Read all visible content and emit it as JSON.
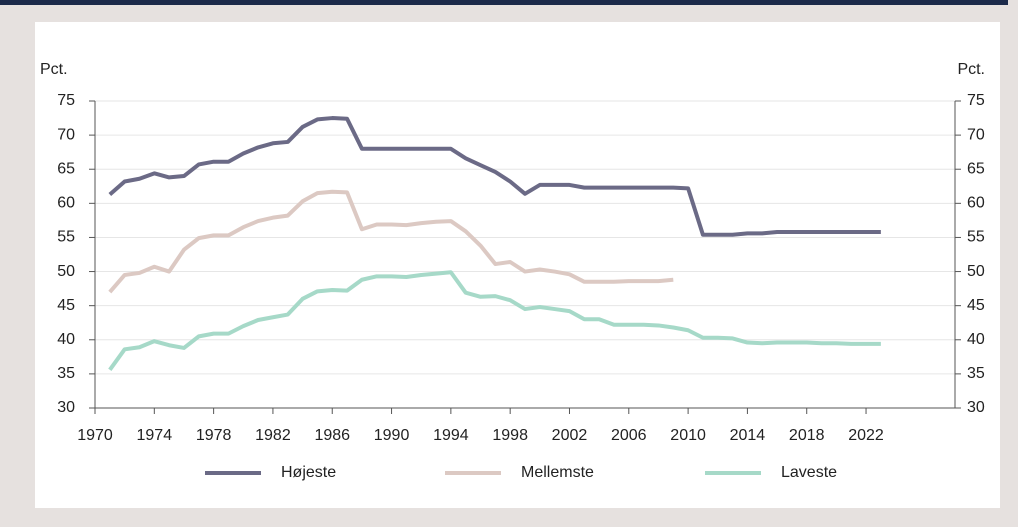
{
  "chart_data": {
    "type": "line",
    "y_label": "Pct.",
    "y2_label": "Pct.",
    "x": [
      1971,
      1972,
      1973,
      1974,
      1975,
      1976,
      1977,
      1978,
      1979,
      1980,
      1981,
      1982,
      1983,
      1984,
      1985,
      1986,
      1987,
      1988,
      1989,
      1990,
      1991,
      1992,
      1993,
      1994,
      1995,
      1996,
      1997,
      1998,
      1999,
      2000,
      2001,
      2002,
      2003,
      2004,
      2005,
      2006,
      2007,
      2008,
      2009,
      2010,
      2011,
      2012,
      2013,
      2014,
      2015,
      2016,
      2017,
      2018,
      2019,
      2020,
      2021,
      2022,
      2023
    ],
    "series": [
      {
        "name": "Højeste",
        "color": "#6b6a86",
        "values": [
          61.3,
          63.2,
          63.6,
          64.4,
          63.8,
          64.0,
          65.7,
          66.1,
          66.1,
          67.3,
          68.2,
          68.8,
          69.0,
          71.2,
          72.3,
          72.5,
          72.4,
          68.0,
          68.0,
          68.0,
          68.0,
          68.0,
          68.0,
          68.0,
          66.6,
          65.6,
          64.6,
          63.2,
          61.4,
          62.7,
          62.7,
          62.7,
          62.3,
          62.3,
          62.3,
          62.3,
          62.3,
          62.3,
          62.3,
          62.2,
          55.4,
          55.4,
          55.4,
          55.6,
          55.6,
          55.8,
          55.8,
          55.8,
          55.8,
          55.8,
          55.8,
          55.8,
          55.8
        ]
      },
      {
        "name": "Mellemste",
        "color": "#dcc9c3",
        "values": [
          47.0,
          49.5,
          49.8,
          50.7,
          50.0,
          53.2,
          54.9,
          55.3,
          55.3,
          56.5,
          57.4,
          57.9,
          58.2,
          60.3,
          61.5,
          61.7,
          61.6,
          56.2,
          56.9,
          56.9,
          56.8,
          57.1,
          57.3,
          57.4,
          55.9,
          53.8,
          51.1,
          51.4,
          50.0,
          50.3,
          50.0,
          49.6,
          48.5,
          48.5,
          48.5,
          48.6,
          48.6,
          48.6,
          48.8,
          null,
          null,
          null,
          null,
          null,
          null,
          null,
          null,
          null,
          null,
          null,
          null,
          null,
          null
        ]
      },
      {
        "name": "Laveste",
        "color": "#a6d9c8",
        "values": [
          35.6,
          38.6,
          38.9,
          39.8,
          39.2,
          38.8,
          40.5,
          40.9,
          40.9,
          42.0,
          42.9,
          43.3,
          43.7,
          46.0,
          47.1,
          47.3,
          47.2,
          48.8,
          49.3,
          49.3,
          49.2,
          49.5,
          49.7,
          49.9,
          46.9,
          46.3,
          46.4,
          45.8,
          44.5,
          44.8,
          44.5,
          44.2,
          43.0,
          43.0,
          42.2,
          42.2,
          42.2,
          42.1,
          41.8,
          41.4,
          40.3,
          40.3,
          40.2,
          39.6,
          39.5,
          39.6,
          39.6,
          39.6,
          39.5,
          39.5,
          39.4,
          39.4,
          39.4
        ]
      }
    ],
    "xlim": [
      1970,
      2028
    ],
    "xticks": [
      1970,
      1974,
      1978,
      1982,
      1986,
      1990,
      1994,
      1998,
      2002,
      2006,
      2010,
      2014,
      2018,
      2022
    ],
    "ylim": [
      30,
      75
    ],
    "yticks": [
      30,
      35,
      40,
      45,
      50,
      55,
      60,
      65,
      70,
      75
    ],
    "y2lim": [
      30,
      75
    ],
    "y2ticks": [
      30,
      35,
      40,
      45,
      50,
      55,
      60,
      65,
      70,
      75
    ],
    "grid": true,
    "legend": "bottom"
  }
}
